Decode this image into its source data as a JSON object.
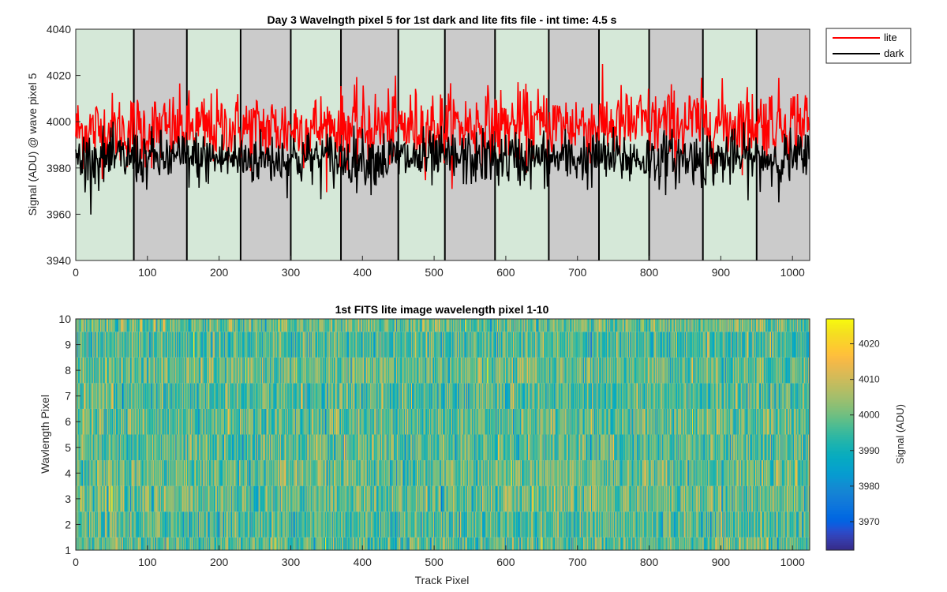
{
  "colors": {
    "lite": "#ff0000",
    "dark": "#000000",
    "band_light": "#d5e8d8",
    "band_dark": "#cbcbcb"
  },
  "colormap": "parula",
  "chart_data": [
    {
      "type": "line",
      "title": "Day 3 Wavelngth pixel 5 for 1st dark and lite fits file - int time: 4.5 s",
      "xlabel": "",
      "ylabel": "Signal (ADU) @ wave pixel 5",
      "xlim": [
        0,
        1024
      ],
      "ylim": [
        3940,
        4040
      ],
      "xticks": [
        0,
        100,
        200,
        300,
        400,
        500,
        600,
        700,
        800,
        900,
        1000
      ],
      "yticks": [
        3940,
        3960,
        3980,
        4000,
        4020,
        4040
      ],
      "grid": false,
      "legend_position": "top-right-outside",
      "background_band_edges": [
        0,
        81,
        155,
        230,
        300,
        370,
        450,
        515,
        585,
        660,
        730,
        800,
        875,
        950,
        1024
      ],
      "series": [
        {
          "name": "lite",
          "color": "#ff0000",
          "n_points": 1024,
          "mean": 3996,
          "spread": 8,
          "min_approx": 3967,
          "max_approx": 4025
        },
        {
          "name": "dark",
          "color": "#000000",
          "n_points": 1024,
          "mean": 3984,
          "spread": 6,
          "min_approx": 3956,
          "max_approx": 4000
        }
      ]
    },
    {
      "type": "heatmap",
      "title": "1st FITS lite image wavelength pixel 1-10",
      "xlabel": "Track Pixel",
      "ylabel": "Wavlength Pixel",
      "xlim": [
        0,
        1024
      ],
      "ylim": [
        1,
        10
      ],
      "xticks": [
        0,
        100,
        200,
        300,
        400,
        500,
        600,
        700,
        800,
        900,
        1000
      ],
      "yticks": [
        1,
        2,
        3,
        4,
        5,
        6,
        7,
        8,
        9,
        10
      ],
      "rows": 10,
      "cols": 1024,
      "colorbar_label": "Signal (ADU)",
      "colorbar_range": [
        3962,
        4027
      ],
      "colorbar_ticks": [
        3970,
        3980,
        3990,
        4000,
        4010,
        4020
      ],
      "value_mean": 3998,
      "value_spread": 8
    }
  ]
}
